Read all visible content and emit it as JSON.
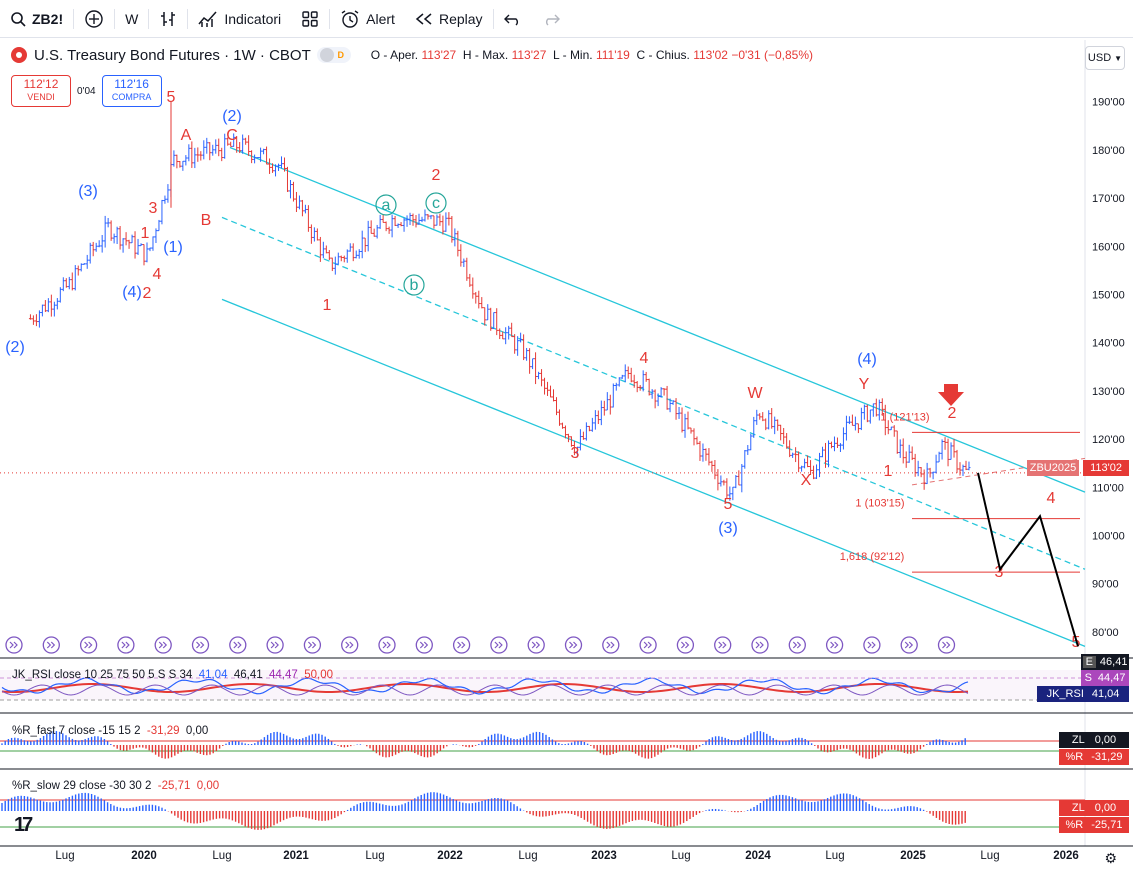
{
  "toolbar": {
    "symbol": "ZB2!",
    "interval": "W",
    "indicators_label": "Indicatori",
    "alert_label": "Alert",
    "replay_label": "Replay"
  },
  "legend": {
    "title": "U.S. Treasury Bond Futures · 1W · CBOT",
    "badge": "D",
    "open_label": "O - Aper.",
    "open": "113'27",
    "high_label": "H - Max.",
    "high": "113'27",
    "low_label": "L - Min.",
    "low": "111'19",
    "close_label": "C - Chius.",
    "close": "113'02",
    "change": "−0'31 (−0,85%)"
  },
  "trade": {
    "sell_price": "112'12",
    "sell_label": "VENDI",
    "spread": "0'04",
    "buy_price": "112'16",
    "buy_label": "COMPRA"
  },
  "currency": "USD",
  "price_axis": {
    "labels": [
      "190'00",
      "180'00",
      "170'00",
      "160'00",
      "150'00",
      "140'00",
      "130'00",
      "120'00",
      "110'00",
      "100'00",
      "90'00",
      "80'00"
    ],
    "current_symbol_tag": "ZBU2025",
    "current_price_tag": "113'02"
  },
  "colors": {
    "up_bar": "#2962ff",
    "down_bar": "#e53935",
    "channel": "#26c6da",
    "label_red": "#e53935",
    "label_blue": "#2962ff",
    "label_teal": "#26a69a",
    "fib_line": "#e57373",
    "projection": "#000000"
  },
  "chart_data": [
    {
      "type": "line",
      "subtype": "ohlc_bars",
      "title": "U.S. Treasury Bond Futures · 1W · CBOT",
      "x": [
        "2019-04",
        "2019-07",
        "2019-10",
        "2020-01",
        "2020-03",
        "2020-08",
        "2020-11",
        "2021-03",
        "2021-08",
        "2021-12",
        "2022-03",
        "2022-06",
        "2022-10",
        "2023-02",
        "2023-05",
        "2023-10",
        "2023-12",
        "2024-04",
        "2024-06",
        "2024-09",
        "2024-11",
        "2025-01",
        "2025-02",
        "2025-04"
      ],
      "series": [
        {
          "name": "ZB2!",
          "values": [
            145,
            152,
            164,
            158,
            178,
            181,
            177,
            156,
            166,
            165,
            146,
            138,
            118,
            134,
            128,
            108,
            126,
            113,
            120,
            127,
            117,
            112,
            119,
            113
          ]
        }
      ],
      "ylim": [
        75,
        197
      ],
      "xticks": [
        "Lug",
        "2020",
        "Lug",
        "2021",
        "Lug",
        "2022",
        "Lug",
        "2023",
        "Lug",
        "2024",
        "Lug",
        "2025",
        "Lug",
        "2026"
      ],
      "wave_labels": [
        "(2)",
        "(3)",
        "(4)",
        "(1)",
        "(2)",
        "1",
        "2",
        "3",
        "4",
        "5",
        "A",
        "B",
        "C",
        "a",
        "b",
        "c",
        "1",
        "2",
        "3",
        "4",
        "5",
        "(3)",
        "W",
        "X",
        "Y",
        "(4)",
        "1",
        "2",
        "3",
        "4",
        "5"
      ],
      "fib_levels": [
        {
          "label": "1 (121'13)",
          "value": 121.4
        },
        {
          "label": "1 (103'15)",
          "value": 103.5
        },
        {
          "label": "1,618 (92'12)",
          "value": 92.4
        }
      ],
      "projection": [
        113,
        93,
        104,
        77
      ]
    },
    {
      "type": "line",
      "title": "JK_RSI close 10 25 75 50 5 S S 34",
      "values_shown": [
        "41,04",
        "46,41",
        "44,47",
        "50,00"
      ],
      "axis_tags": {
        "E": "46,41",
        "S": "44,47",
        "JK_RSI": "41,04"
      }
    },
    {
      "type": "bar",
      "title": "%R_fast 7 close -15 15 2",
      "values_shown": [
        "-31,29",
        "0,00"
      ],
      "axis_tags": {
        "ZL": "0,00",
        "%R": "-31,29"
      }
    },
    {
      "type": "bar",
      "title": "%R_slow 29 close -30 30 2",
      "values_shown": [
        "-25,71",
        "0,00"
      ],
      "axis_tags": {
        "ZL": "0,00",
        "%R": "-25,71"
      }
    }
  ]
}
